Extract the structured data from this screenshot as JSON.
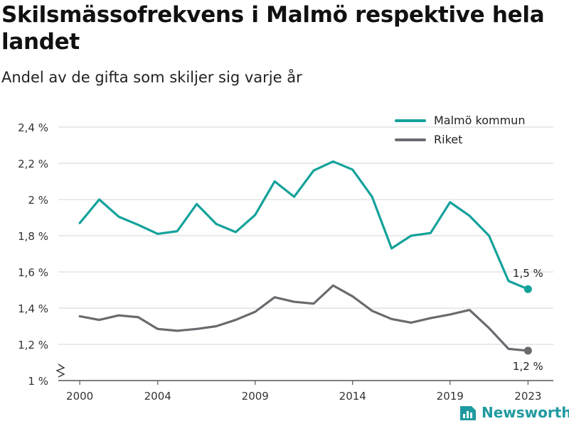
{
  "title": "Skilsmässofrekvens i Malmö respektive hela landet",
  "subtitle": "Andel av de gifta som skiljer sig varje år",
  "brand": {
    "name": "Newsworthy",
    "color": "#1f9aa0"
  },
  "chart_data": {
    "type": "line",
    "title": "Skilsmässofrekvens i Malmö respektive hela landet",
    "subtitle": "Andel av de gifta som skiljer sig varje år",
    "xlabel": "",
    "ylabel": "",
    "x": [
      2000,
      2001,
      2002,
      2003,
      2004,
      2005,
      2006,
      2007,
      2008,
      2009,
      2010,
      2011,
      2012,
      2013,
      2014,
      2015,
      2016,
      2017,
      2018,
      2019,
      2020,
      2021,
      2022,
      2023
    ],
    "x_ticks": [
      "2000",
      "2004",
      "2009",
      "2014",
      "2019",
      "2023"
    ],
    "x_tick_values": [
      2000,
      2004,
      2009,
      2014,
      2019,
      2023
    ],
    "y_ticks": [
      "1 %",
      "1,2 %",
      "1,4 %",
      "1,6 %",
      "1,8 %",
      "2 %",
      "2,2 %",
      "2,4 %"
    ],
    "y_tick_values": [
      1.0,
      1.2,
      1.4,
      1.6,
      1.8,
      2.0,
      2.2,
      2.4
    ],
    "ylim": [
      1.0,
      2.4
    ],
    "y_axis_break": true,
    "grid": true,
    "legend_position": "top-right",
    "series": [
      {
        "name": "Malmö kommun",
        "color": "#13a29a",
        "values": [
          1.87,
          2.0,
          1.905,
          1.86,
          1.81,
          1.825,
          1.975,
          1.865,
          1.82,
          1.915,
          2.1,
          2.015,
          2.16,
          2.21,
          2.165,
          2.015,
          1.73,
          1.8,
          1.815,
          1.985,
          1.91,
          1.8,
          1.55,
          1.505
        ],
        "end_label": "1,5 %"
      },
      {
        "name": "Riket",
        "color": "#6a6a6f",
        "values": [
          1.355,
          1.335,
          1.36,
          1.35,
          1.285,
          1.275,
          1.285,
          1.3,
          1.335,
          1.38,
          1.46,
          1.435,
          1.425,
          1.525,
          1.465,
          1.385,
          1.34,
          1.32,
          1.345,
          1.365,
          1.39,
          1.29,
          1.175,
          1.165
        ],
        "end_label": "1,2 %"
      }
    ]
  }
}
